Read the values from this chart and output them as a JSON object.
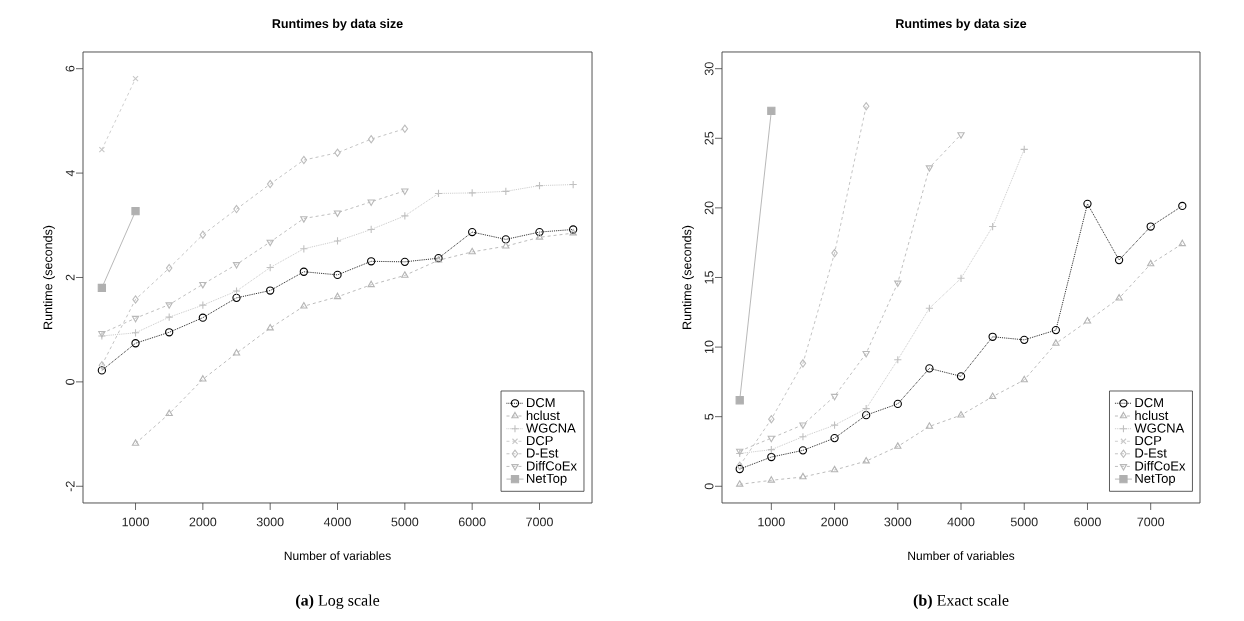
{
  "chart_data": [
    {
      "type": "line",
      "title": "Runtimes by data size",
      "xlabel": "Number of variables",
      "ylabel": "Runtime (seconds)",
      "x": [
        500,
        1000,
        1500,
        2000,
        2500,
        3000,
        3500,
        4000,
        4500,
        5000,
        5500,
        6000,
        6500,
        7000,
        7500
      ],
      "xlim": [
        220,
        7780
      ],
      "xticks": [
        1000,
        2000,
        3000,
        4000,
        5000,
        6000,
        7000
      ],
      "ylim": [
        -2.32,
        6.32
      ],
      "yticks": [
        -2,
        0,
        2,
        4,
        6
      ],
      "legend": "bottom right",
      "annotations": [
        "**(a)** Log scale"
      ],
      "series": [
        {
          "name": "DCM",
          "color": "#000000",
          "marker": "circle",
          "line_style": "dotted",
          "values": [
            0.22,
            0.74,
            0.95,
            1.23,
            1.61,
            1.75,
            2.11,
            2.05,
            2.31,
            2.3,
            2.37,
            2.87,
            2.73,
            2.87,
            2.92
          ]
        },
        {
          "name": "hclust",
          "color": "#b4b4b4",
          "marker": "triangle",
          "line_style": "dashed",
          "values": [
            null,
            -1.18,
            -0.61,
            0.05,
            0.55,
            1.03,
            1.45,
            1.63,
            1.86,
            2.04,
            2.33,
            2.49,
            2.6,
            2.77,
            2.85
          ]
        },
        {
          "name": "WGCNA",
          "color": "#c0c0c0",
          "marker": "plus",
          "line_style": "dotted",
          "values": [
            0.88,
            0.94,
            1.24,
            1.47,
            1.74,
            2.19,
            2.55,
            2.7,
            2.92,
            3.18,
            3.61,
            3.62,
            3.65,
            3.76,
            3.78
          ]
        },
        {
          "name": "DCP",
          "color": "#c8c8c8",
          "marker": "cross",
          "line_style": "dashed",
          "values": [
            4.45,
            5.81,
            null,
            null,
            null,
            null,
            null,
            null,
            null,
            null,
            null,
            null,
            null,
            null,
            null
          ]
        },
        {
          "name": "D-Est",
          "color": "#bcbcbc",
          "marker": "diamond",
          "line_style": "dashed",
          "values": [
            0.32,
            1.58,
            2.18,
            2.82,
            3.31,
            3.79,
            4.25,
            4.39,
            4.65,
            4.85,
            null,
            null,
            null,
            null,
            null
          ]
        },
        {
          "name": "DiffCoEx",
          "color": "#b8b8b8",
          "marker": "triangle-down",
          "line_style": "dashed",
          "values": [
            0.93,
            1.22,
            1.48,
            1.87,
            2.25,
            2.68,
            3.13,
            3.24,
            3.45,
            3.66,
            null,
            null,
            null,
            null,
            null
          ]
        },
        {
          "name": "NetTop",
          "color": "#b0b0b0",
          "marker": "square",
          "line_style": "solid",
          "values": [
            1.8,
            3.27,
            null,
            null,
            null,
            null,
            null,
            null,
            null,
            null,
            null,
            null,
            null,
            null,
            null
          ]
        }
      ]
    },
    {
      "type": "line",
      "title": "Runtimes by data size",
      "xlabel": "Number of variables",
      "ylabel": "Runtime (seconds)",
      "x": [
        500,
        1000,
        1500,
        2000,
        2500,
        3000,
        3500,
        4000,
        4500,
        5000,
        5500,
        6000,
        6500,
        7000,
        7500
      ],
      "xlim": [
        220,
        7780
      ],
      "xticks": [
        1000,
        2000,
        3000,
        4000,
        5000,
        6000,
        7000
      ],
      "ylim": [
        -1.2,
        31.2
      ],
      "yticks": [
        0,
        5,
        10,
        15,
        20,
        25,
        30
      ],
      "legend": "bottom right",
      "annotations": [
        "**(b)** Exact scale"
      ],
      "series": [
        {
          "name": "DCM",
          "color": "#000000",
          "marker": "circle",
          "line_style": "dotted",
          "values": [
            1.24,
            2.1,
            2.58,
            3.46,
            5.11,
            5.92,
            8.47,
            7.9,
            10.74,
            10.52,
            11.22,
            20.29,
            16.25,
            18.66,
            20.14
          ]
        },
        {
          "name": "hclust",
          "color": "#b4b4b4",
          "marker": "triangle",
          "line_style": "dashed",
          "values": [
            0.14,
            0.43,
            0.67,
            1.17,
            1.81,
            2.86,
            4.3,
            5.11,
            6.44,
            7.64,
            10.26,
            11.86,
            13.51,
            15.97,
            17.42
          ]
        },
        {
          "name": "WGCNA",
          "color": "#c0c0c0",
          "marker": "plus",
          "line_style": "dotted",
          "values": [
            2.36,
            2.63,
            3.56,
            4.39,
            5.58,
            9.09,
            12.79,
            14.94,
            18.66,
            24.2,
            null,
            null,
            null,
            null,
            null
          ]
        },
        {
          "name": "DCP",
          "color": "#c8c8c8",
          "marker": "cross",
          "line_style": "dashed",
          "values": [
            null,
            null,
            null,
            null,
            null,
            null,
            null,
            null,
            null,
            null,
            null,
            null,
            null,
            null,
            null
          ]
        },
        {
          "name": "D-Est",
          "color": "#bcbcbc",
          "marker": "diamond",
          "line_style": "dashed",
          "values": [
            1.48,
            4.82,
            8.83,
            16.75,
            27.3,
            null,
            null,
            null,
            null,
            null,
            null,
            null,
            null,
            null,
            null
          ]
        },
        {
          "name": "DiffCoEx",
          "color": "#b8b8b8",
          "marker": "triangle-down",
          "line_style": "dashed",
          "values": [
            2.53,
            3.46,
            4.42,
            6.47,
            9.55,
            14.61,
            22.89,
            25.27,
            null,
            null,
            null,
            null,
            null,
            null,
            null
          ]
        },
        {
          "name": "NetTop",
          "color": "#b0b0b0",
          "marker": "square",
          "line_style": "solid",
          "values": [
            6.18,
            26.97,
            null,
            null,
            null,
            null,
            null,
            null,
            null,
            null,
            null,
            null,
            null,
            null,
            null
          ]
        }
      ]
    }
  ]
}
